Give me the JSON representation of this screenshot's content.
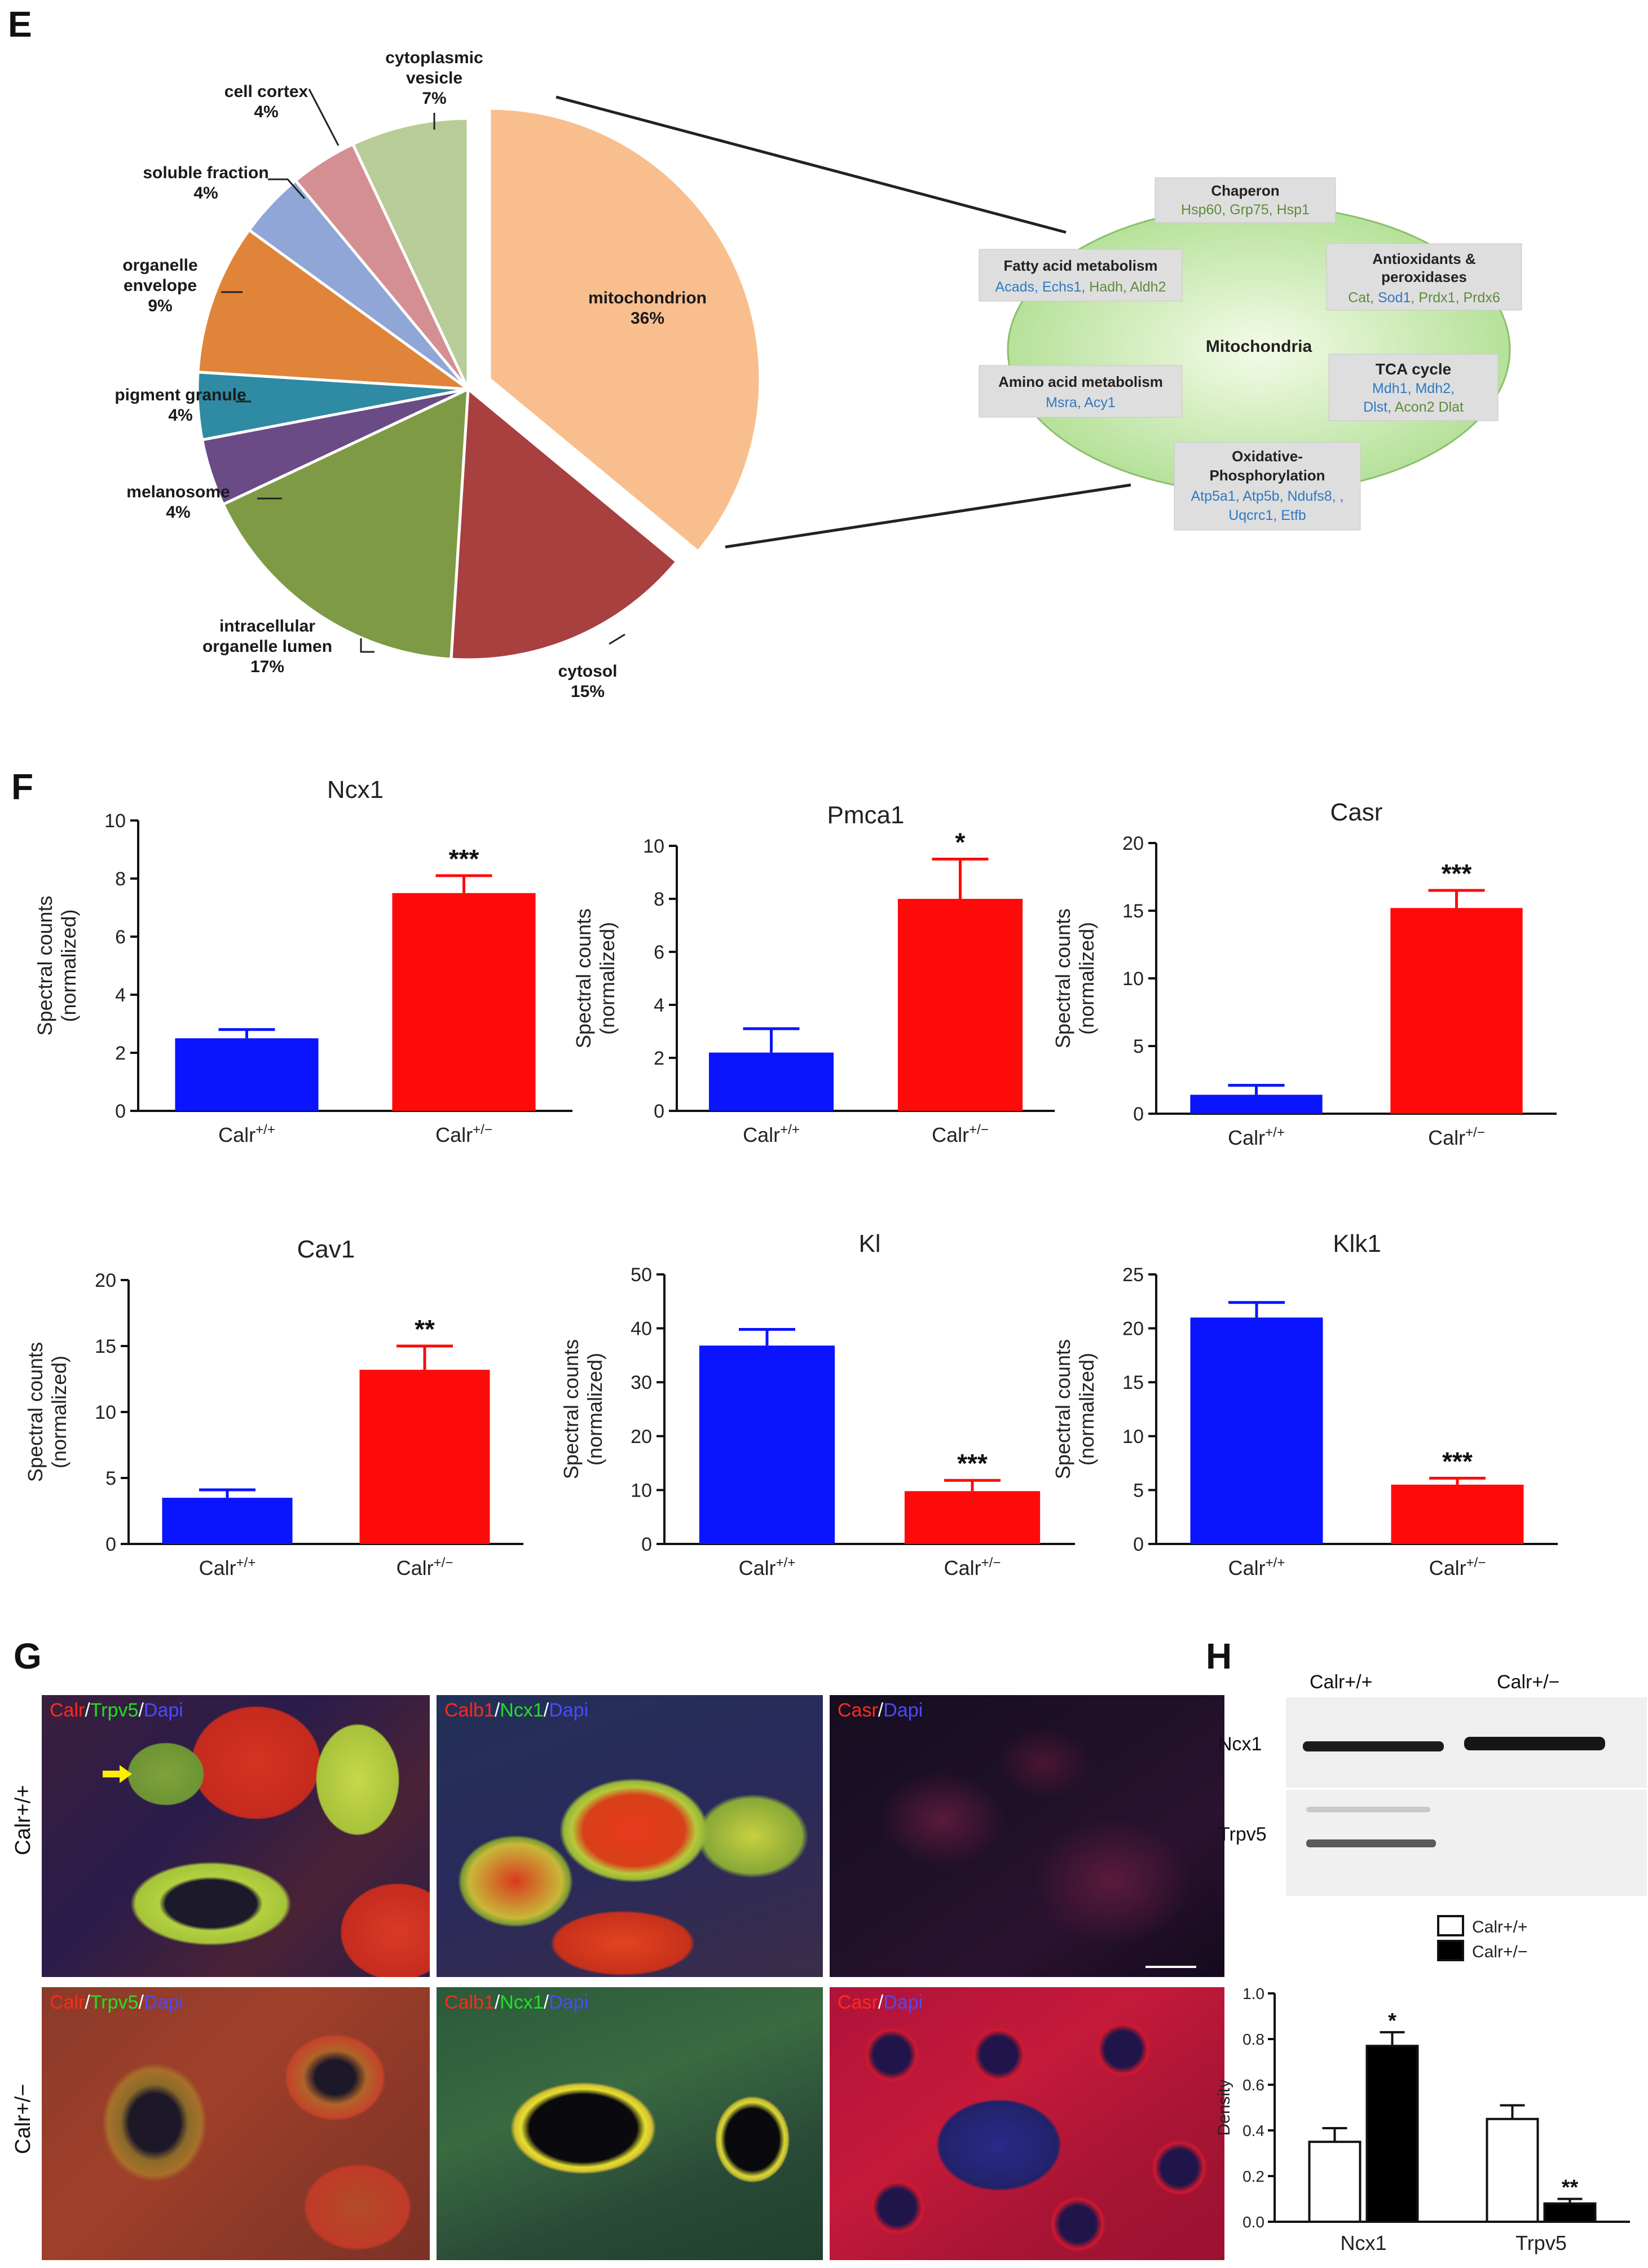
{
  "panels": {
    "E": "E",
    "F": "F",
    "G": "G",
    "H": "H"
  },
  "pie": {
    "chart_data": {
      "type": "pie",
      "title": "",
      "slices": [
        {
          "label": "mitochondrion",
          "pct": "36%",
          "value": 36,
          "color": "#f8be8e"
        },
        {
          "label": "cytosol",
          "pct": "15%",
          "value": 15,
          "color": "#a8403f"
        },
        {
          "label": "intracellular organelle lumen",
          "pct": "17%",
          "value": 17,
          "color": "#7f9a45"
        },
        {
          "label": "melanosome",
          "pct": "4%",
          "value": 4,
          "color": "#6b4b86"
        },
        {
          "label": "pigment granule",
          "pct": "4%",
          "value": 4,
          "color": "#2f8aa3"
        },
        {
          "label": "organelle envelope",
          "pct": "9%",
          "value": 9,
          "color": "#df8438"
        },
        {
          "label": "soluble fraction",
          "pct": "4%",
          "value": 4,
          "color": "#8fa6d6"
        },
        {
          "label": "cell cortex",
          "pct": "4%",
          "value": 4,
          "color": "#d48f92"
        },
        {
          "label": "cytoplasmic vesicle",
          "pct": "7%",
          "value": 7,
          "color": "#b7cc97"
        }
      ]
    }
  },
  "labels": {
    "mito_1": "mitochondrion",
    "mito_2": "36%",
    "cytosol_1": "cytosol",
    "cytosol_2": "15%",
    "lumen_1": "intracellular",
    "lumen_2": "organelle lumen",
    "lumen_3": "17%",
    "melano_1": "melanosome",
    "melano_2": "4%",
    "pigment_1": "pigment granule",
    "pigment_2": "4%",
    "envelope_1": "organelle",
    "envelope_2": "envelope",
    "envelope_3": "9%",
    "soluble_1": "soluble fraction",
    "soluble_2": "4%",
    "cortex_1": "cell cortex",
    "cortex_2": "4%",
    "vesicle_1": "cytoplasmic",
    "vesicle_2": "vesicle",
    "vesicle_3": "7%"
  },
  "mito_diagram": {
    "center": "Mitochondria",
    "boxes": {
      "chaperon": {
        "title": "Chaperon",
        "line1": "Hsp60, Grp75, Hsp1"
      },
      "fatty": {
        "title": "Fatty acid metabolism",
        "line1a": "Acads, Echs1, ",
        "line1b": "Hadh, Aldh2"
      },
      "antiox": {
        "title1": "Antioxidants &",
        "title2": "peroxidases",
        "line1a": "Cat, ",
        "line1b": "Sod1",
        "line1c": ", Prdx1, Prdx6"
      },
      "tca": {
        "title": "TCA cycle",
        "line1": "Mdh1, Mdh2,",
        "line2a": "Dlst, ",
        "line2b": "Acon2 Dlat"
      },
      "amino": {
        "title": "Amino acid metabolism",
        "line1": "Msra, Acy1"
      },
      "oxphos": {
        "title1": "Oxidative-",
        "title2": "Phosphorylation",
        "line1": "Atp5a1, Atp5b, Ndufs8, ,",
        "line2": "Uqcrc1, Etfb"
      }
    }
  },
  "bar_charts": {
    "chart_data": [
      {
        "type": "bar",
        "title": "Ncx1",
        "ylabel1": "Spectral counts",
        "ylabel2": "(normalized)",
        "ylim": [
          0,
          10
        ],
        "ticks": [
          "0",
          "2",
          "4",
          "6",
          "8",
          "10"
        ],
        "categories": [
          "Calr+/+",
          "Calr+/-"
        ],
        "values": [
          2.5,
          7.5
        ],
        "errors": [
          0.3,
          0.6
        ],
        "sig": "***"
      },
      {
        "type": "bar",
        "title": "Pmca1",
        "ylabel1": "Spectral counts",
        "ylabel2": "(normalized)",
        "ylim": [
          0,
          10
        ],
        "ticks": [
          "0",
          "2",
          "4",
          "6",
          "8",
          "10"
        ],
        "categories": [
          "Calr+/+",
          "Calr+/-"
        ],
        "values": [
          2.2,
          8.0
        ],
        "errors": [
          0.9,
          1.5
        ],
        "sig": "*"
      },
      {
        "type": "bar",
        "title": "Casr",
        "ylabel1": "Spectral counts",
        "ylabel2": "(normalized)",
        "ylim": [
          0,
          20
        ],
        "ticks": [
          "0",
          "5",
          "10",
          "15",
          "20"
        ],
        "categories": [
          "Calr+/+",
          "Calr+/-"
        ],
        "values": [
          1.4,
          15.2
        ],
        "errors": [
          0.7,
          1.3
        ],
        "sig": "***"
      },
      {
        "type": "bar",
        "title": "Cav1",
        "ylabel1": "Spectral counts",
        "ylabel2": "(normalized)",
        "ylim": [
          0,
          20
        ],
        "ticks": [
          "0",
          "5",
          "10",
          "15",
          "20"
        ],
        "categories": [
          "Calr+/+",
          "Calr+/-"
        ],
        "values": [
          3.5,
          13.2
        ],
        "errors": [
          0.6,
          1.8
        ],
        "sig": "**"
      },
      {
        "type": "bar",
        "title": "Kl",
        "ylabel1": "Spectral counts",
        "ylabel2": "(normalized)",
        "ylim": [
          0,
          50
        ],
        "ticks": [
          "0",
          "10",
          "20",
          "30",
          "40",
          "50"
        ],
        "categories": [
          "Calr+/+",
          "Calr+/-"
        ],
        "values": [
          36.8,
          9.8
        ],
        "errors": [
          3.0,
          2.0
        ],
        "sig": "***"
      },
      {
        "type": "bar",
        "title": "Klk1",
        "ylabel1": "Spectral counts",
        "ylabel2": "(normalized)",
        "ylim": [
          0,
          25
        ],
        "ticks": [
          "0",
          "5",
          "10",
          "15",
          "20",
          "25"
        ],
        "categories": [
          "Calr+/+",
          "Calr+/-"
        ],
        "values": [
          21.0,
          5.5
        ],
        "errors": [
          1.4,
          0.6
        ],
        "sig": "***"
      }
    ]
  },
  "calr": {
    "base": "Calr",
    "wt": "+/+",
    "het": "+/−"
  },
  "microscopy": {
    "row_wt": "Calr+/+",
    "row_het": "Calr+/−",
    "col1": {
      "a": "Calr",
      "b": "Trpv5",
      "c": "Dapi"
    },
    "col2": {
      "a": "Calb1",
      "b": "Ncx1",
      "c": "Dapi"
    },
    "col3": {
      "a": "Casr",
      "c": "Dapi"
    },
    "slash": "/"
  },
  "western": {
    "col_wt": "Calr+/+",
    "col_het": "Calr+/−",
    "band1": "Ncx1",
    "band2": "Trpv5"
  },
  "density": {
    "chart_data": {
      "type": "bar",
      "ylabel": "Density",
      "ylim": [
        0,
        1.0
      ],
      "ticks": [
        "0.0",
        "0.2",
        "0.4",
        "0.6",
        "0.8",
        "1.0"
      ],
      "categories": [
        "Ncx1",
        "Trpv5"
      ],
      "series": [
        {
          "name": "Calr+/+",
          "values": [
            0.35,
            0.45
          ],
          "errors": [
            0.06,
            0.06
          ],
          "color": "#ffffff"
        },
        {
          "name": "Calr+/−",
          "values": [
            0.77,
            0.08
          ],
          "errors": [
            0.06,
            0.02
          ],
          "color": "#000000"
        }
      ],
      "sig": [
        "*",
        "**"
      ]
    }
  }
}
